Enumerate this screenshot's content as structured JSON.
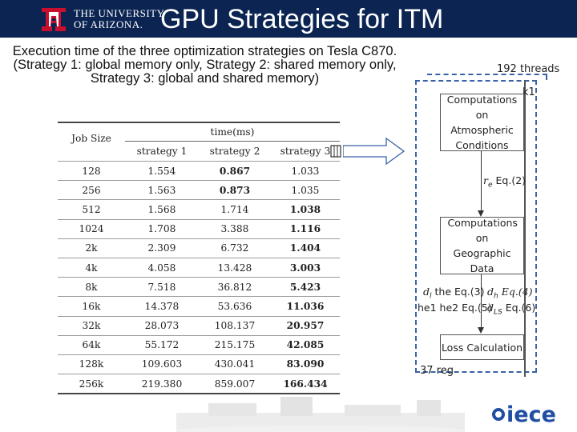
{
  "header": {
    "university_line1": "THE UNIVERSITY",
    "university_line2": "OF ARIZONA.",
    "title": "GPU Strategies for ITM"
  },
  "caption": "Execution time of the three optimization strategies on Tesla C870. (Strategy 1: global memory only, Strategy 2: shared memory only, Strategy 3: global and shared memory)",
  "table": {
    "col0_header": "Job Size",
    "group_header": "time(ms)",
    "headers": [
      "strategy 1",
      "strategy 2",
      "strategy 3"
    ],
    "rows": [
      {
        "size": "128",
        "s1": "1.554",
        "s2": "0.867",
        "s3": "1.033",
        "bold": 2
      },
      {
        "size": "256",
        "s1": "1.563",
        "s2": "0.873",
        "s3": "1.035",
        "bold": 2
      },
      {
        "size": "512",
        "s1": "1.568",
        "s2": "1.714",
        "s3": "1.038",
        "bold": 3
      },
      {
        "size": "1024",
        "s1": "1.708",
        "s2": "3.388",
        "s3": "1.116",
        "bold": 3
      },
      {
        "size": "2k",
        "s1": "2.309",
        "s2": "6.732",
        "s3": "1.404",
        "bold": 3
      },
      {
        "size": "4k",
        "s1": "4.058",
        "s2": "13.428",
        "s3": "3.003",
        "bold": 3
      },
      {
        "size": "8k",
        "s1": "7.518",
        "s2": "36.812",
        "s3": "5.423",
        "bold": 3
      },
      {
        "size": "16k",
        "s1": "14.378",
        "s2": "53.636",
        "s3": "11.036",
        "bold": 3
      },
      {
        "size": "32k",
        "s1": "28.073",
        "s2": "108.137",
        "s3": "20.957",
        "bold": 3
      },
      {
        "size": "64k",
        "s1": "55.172",
        "s2": "215.175",
        "s3": "42.085",
        "bold": 3
      },
      {
        "size": "128k",
        "s1": "109.603",
        "s2": "430.041",
        "s3": "83.090",
        "bold": 3
      },
      {
        "size": "256k",
        "s1": "219.380",
        "s2": "859.007",
        "s3": "166.434",
        "bold": 3
      }
    ]
  },
  "diagram": {
    "threads_label": "192 threads",
    "kernel_label": "k1",
    "box1": "Computations on Atmospheric Conditions",
    "eq1_var": "r",
    "eq1_sub": "e",
    "eq1_text": "Eq.(2)",
    "box2": "Computations on Geographic Data",
    "eq2_left": "the Eq.(3)",
    "eq2_right": "Eq.(4)",
    "eq3_left": "he1 he2 Eq.(5)",
    "eq3_right": "Eq.(6)",
    "box3": "Loss Calculation",
    "reg_label": "37 reg"
  },
  "footer": {
    "logo_text": "iece"
  },
  "colors": {
    "header_bg": "#0b2452",
    "arizona_red": "#c8102e",
    "dash_blue": "#3a62a8",
    "iece_blue": "#1f4ea3"
  }
}
